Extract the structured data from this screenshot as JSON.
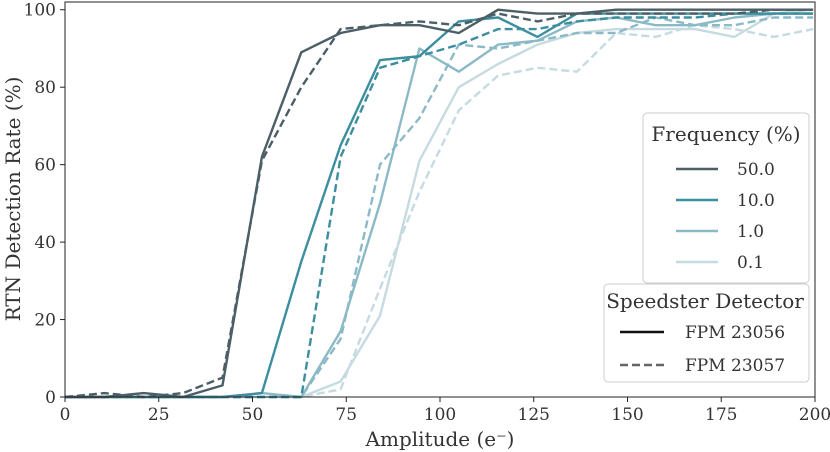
{
  "chart_data": {
    "type": "line",
    "xlabel": "Amplitude (e⁻)",
    "ylabel": "RTN Detection Rate (%)",
    "xlim": [
      0,
      200
    ],
    "ylim": [
      0,
      102
    ],
    "xticks": [
      0,
      25,
      50,
      75,
      100,
      125,
      150,
      175,
      200
    ],
    "yticks": [
      0,
      20,
      40,
      60,
      80,
      100
    ],
    "grid": false,
    "x": [
      0,
      10.5,
      21,
      31.5,
      42,
      52.5,
      63,
      73.5,
      84,
      94.5,
      105,
      115.5,
      126,
      136.5,
      147,
      157.5,
      168,
      178.5,
      189,
      199.5
    ],
    "frequency_legend": {
      "title": "Frequency (%)",
      "placement": "center-right",
      "entries": [
        {
          "label": "50.0",
          "color": "#4c5f66"
        },
        {
          "label": "10.0",
          "color": "#3d8e9e"
        },
        {
          "label": "1.0",
          "color": "#8bbac6"
        },
        {
          "label": "0.1",
          "color": "#c5dbe1"
        }
      ]
    },
    "detector_legend": {
      "title": "Speedster Detector",
      "placement": "bottom-right",
      "entries": [
        {
          "label": "FPM 23056",
          "style": "solid"
        },
        {
          "label": "FPM 23057",
          "style": "dashed"
        }
      ]
    },
    "series": [
      {
        "name": "0.1 — FPM 23057",
        "frequency": "0.1",
        "detector": "FPM 23057",
        "color": "#c5dbe1",
        "dash": true,
        "values": [
          0,
          0,
          0,
          0,
          0,
          0,
          0,
          2,
          28,
          53,
          74,
          83,
          85,
          84,
          94,
          93,
          96,
          95,
          93,
          95
        ]
      },
      {
        "name": "0.1 — FPM 23056",
        "frequency": "0.1",
        "detector": "FPM 23056",
        "color": "#c5dbe1",
        "dash": false,
        "values": [
          0,
          0,
          0,
          0,
          0,
          0,
          0,
          4,
          21,
          61,
          80,
          86,
          91,
          94,
          95,
          95,
          95,
          93,
          99,
          100
        ]
      },
      {
        "name": "1.0 — FPM 23057",
        "frequency": "1.0",
        "detector": "FPM 23057",
        "color": "#8bbac6",
        "dash": true,
        "values": [
          0,
          0,
          0,
          0,
          0,
          0,
          0,
          15,
          60,
          72,
          91,
          90,
          92,
          94,
          94,
          98,
          96,
          96,
          98,
          98
        ]
      },
      {
        "name": "1.0 — FPM 23056",
        "frequency": "1.0",
        "detector": "FPM 23056",
        "color": "#8bbac6",
        "dash": false,
        "values": [
          0,
          0,
          0,
          0,
          0,
          1,
          0,
          17,
          50,
          90,
          84,
          91,
          92,
          97,
          98,
          96,
          96,
          98,
          99,
          99
        ]
      },
      {
        "name": "10.0 — FPM 23057",
        "frequency": "10.0",
        "detector": "FPM 23057",
        "color": "#3d8e9e",
        "dash": true,
        "values": [
          0,
          0,
          0,
          0,
          0,
          0,
          0,
          62,
          85,
          88,
          91,
          95,
          95,
          97,
          98,
          98,
          98,
          99,
          99,
          99
        ]
      },
      {
        "name": "10.0 — FPM 23056",
        "frequency": "10.0",
        "detector": "FPM 23056",
        "color": "#3d8e9e",
        "dash": false,
        "values": [
          0,
          0,
          0,
          0,
          0,
          1,
          35,
          65,
          87,
          88,
          97,
          98,
          93,
          99,
          99,
          99,
          99,
          99,
          99,
          99
        ]
      },
      {
        "name": "50.0 — FPM 23057",
        "frequency": "50.0",
        "detector": "FPM 23057",
        "color": "#4c5f66",
        "dash": true,
        "values": [
          0,
          1,
          0,
          1,
          5,
          61,
          80,
          95,
          96,
          97,
          96,
          99,
          97,
          99,
          99,
          99,
          99,
          99,
          100,
          100
        ]
      },
      {
        "name": "50.0 — FPM 23056",
        "frequency": "50.0",
        "detector": "FPM 23056",
        "color": "#4c5f66",
        "dash": false,
        "values": [
          0,
          0,
          1,
          0,
          3,
          62,
          89,
          94,
          96,
          96,
          94,
          100,
          99,
          99,
          100,
          100,
          100,
          100,
          100,
          100
        ]
      }
    ]
  }
}
